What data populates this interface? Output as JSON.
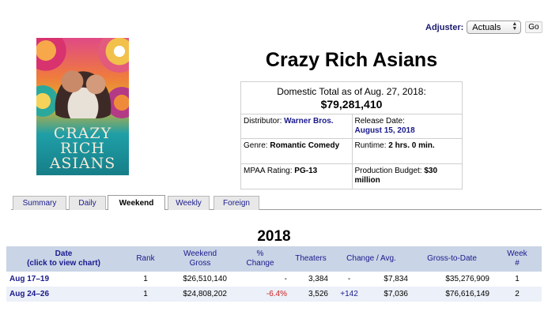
{
  "adjuster": {
    "label": "Adjuster:",
    "selected": "Actuals",
    "go_label": "Go"
  },
  "movie": {
    "title": "Crazy Rich Asians"
  },
  "poster": {
    "title_lines": [
      "CRAZY",
      "RICH",
      "ASIANS"
    ],
    "colors": {
      "top": "#e04a86",
      "mid": "#e3b32a",
      "bottom": "#167e88"
    }
  },
  "info": {
    "total_label": "Domestic Total as of Aug. 27, 2018:",
    "total_value": "$79,281,410",
    "distributor_label": "Distributor:",
    "distributor_value": "Warner Bros.",
    "release_label": "Release Date:",
    "release_value": "August 15, 2018",
    "genre_label": "Genre:",
    "genre_value": "Romantic Comedy",
    "runtime_label": "Runtime:",
    "runtime_value": "2 hrs. 0 min.",
    "mpaa_label": "MPAA Rating:",
    "mpaa_value": "PG-13",
    "budget_label": "Production Budget:",
    "budget_value": "$30 million"
  },
  "tabs": [
    {
      "label": "Summary",
      "active": false
    },
    {
      "label": "Daily",
      "active": false
    },
    {
      "label": "Weekend",
      "active": true
    },
    {
      "label": "Weekly",
      "active": false
    },
    {
      "label": "Foreign",
      "active": false
    }
  ],
  "year": "2018",
  "table": {
    "headers": {
      "date_line1": "Date",
      "date_line2": "(click to view chart)",
      "rank": "Rank",
      "gross_line1": "Weekend",
      "gross_line2": "Gross",
      "change_line1": "%",
      "change_line2": "Change",
      "theaters": "Theaters",
      "change_avg": "Change / Avg.",
      "gross_to_date": "Gross-to-Date",
      "week_line1": "Week",
      "week_line2": "#"
    },
    "rows": [
      {
        "date": "Aug 17–19",
        "rank": "1",
        "gross": "$26,510,140",
        "pct_change": "-",
        "theaters": "3,384",
        "theater_change": "-",
        "avg": "$7,834",
        "gross_to_date": "$35,276,909",
        "week": "1"
      },
      {
        "date": "Aug 24–26",
        "rank": "1",
        "gross": "$24,808,202",
        "pct_change": "-6.4%",
        "theaters": "3,526",
        "theater_change": "+142",
        "avg": "$7,036",
        "gross_to_date": "$76,616,149",
        "week": "2"
      }
    ]
  },
  "colors": {
    "header_bg": "#c9d4e6",
    "link": "#1a1a8c",
    "negative": "#c81e1e",
    "alt_row": "#ecf0f8"
  }
}
